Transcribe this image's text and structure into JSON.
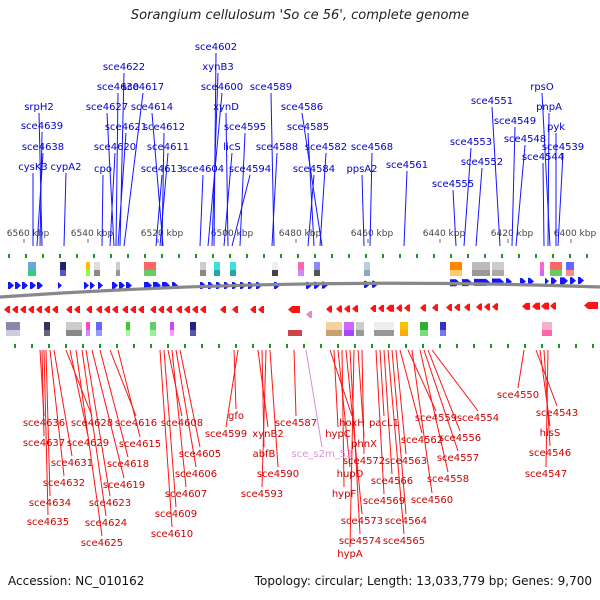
{
  "title": "Sorangium cellulosum 'So ce 56', complete genome",
  "footer": {
    "accession": "Accession: NC_010162",
    "summary": "Topology: circular; Length: 13,033,779 bp; Genes: 9,700"
  },
  "colors": {
    "forward": "#1414ff",
    "reverse": "#ff1414",
    "highlight": "#e08ad6",
    "backbone": "#808080"
  },
  "scale_labels": [
    "6560 kbp",
    "6540 kbp",
    "6520 kbp",
    "6500 kbp",
    "6480 kbp",
    "6460 kbp",
    "6440 kbp",
    "6420 kbp",
    "6400 kbp"
  ],
  "forward_genes": [
    "cysK3",
    "sce4638",
    "sce4639",
    "srpH2",
    "cypA2",
    "cpo",
    "sce4620",
    "sce4621",
    "sce4627",
    "sce4630",
    "sce4622",
    "sce4617",
    "sce4613",
    "sce4611",
    "sce4612",
    "sce4614",
    "sce4604",
    "sce4600",
    "xynB3",
    "sce4602",
    "licS",
    "xynD",
    "sce4594",
    "sce4595",
    "sce4588",
    "sce4589",
    "sce4584",
    "sce4585",
    "sce4582",
    "sce4586",
    "ppsA2",
    "sce4568",
    "sce4561",
    "sce4555",
    "sce4553",
    "sce4552",
    "sce4551",
    "sce4549",
    "sce4548",
    "sce4544",
    "pnpA",
    "rpsO",
    "pyk",
    "sce4539"
  ],
  "reverse_genes": [
    "sce4636",
    "sce4637",
    "sce4635",
    "sce4634",
    "sce4632",
    "sce4631",
    "sce4628",
    "sce4629",
    "sce4625",
    "sce4624",
    "sce4623",
    "sce4619",
    "sce4618",
    "sce4616",
    "sce4615",
    "sce4610",
    "sce4609",
    "sce4608",
    "sce4607",
    "sce4606",
    "sce4605",
    "gfo",
    "sce4599",
    "xynB2",
    "abfB",
    "sce4593",
    "sce4590",
    "sce4587",
    "sce_s2m_53",
    "hoxH",
    "hypC",
    "hupD",
    "hypF",
    "sce4573",
    "sce4574",
    "hypA",
    "phnX",
    "sce4572",
    "sce4569",
    "pacL1",
    "sce4566",
    "sce4565",
    "sce4564",
    "sce4563",
    "sce4562",
    "sce4559",
    "sce4560",
    "sce4558",
    "sce4557",
    "sce4556",
    "sce4554",
    "sce4550",
    "sce4543",
    "hisS",
    "sce4546",
    "sce4547"
  ]
}
